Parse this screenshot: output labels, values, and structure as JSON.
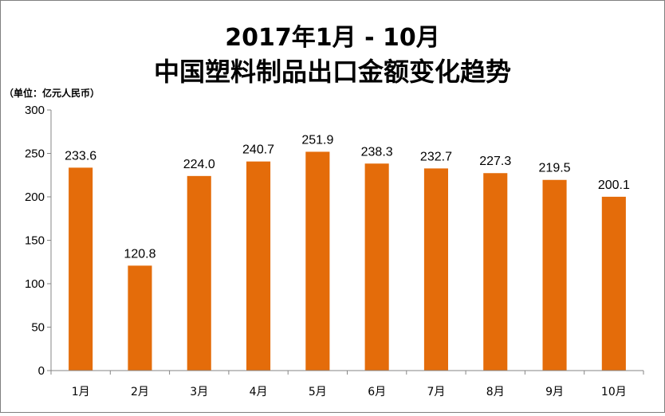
{
  "chart_data": {
    "type": "bar",
    "title_line1": "2017年1月 - 10月",
    "title_line2": "中国塑料制品出口金额变化趋势",
    "unit_label": "（单位：亿元人民币）",
    "categories": [
      "1月",
      "2月",
      "3月",
      "4月",
      "5月",
      "6月",
      "7月",
      "8月",
      "9月",
      "10月"
    ],
    "values": [
      233.6,
      120.8,
      224.0,
      240.7,
      251.9,
      238.3,
      232.7,
      227.3,
      219.5,
      200.1
    ],
    "value_labels": [
      "233.6",
      "120.8",
      "224.0",
      "240.7",
      "251.9",
      "238.3",
      "232.7",
      "227.3",
      "219.5",
      "200.1"
    ],
    "ylim": [
      0,
      300
    ],
    "yticks": [
      0,
      50,
      100,
      150,
      200,
      250,
      300
    ],
    "grid": false,
    "legend": "none",
    "bar_color": "#E46C0A"
  }
}
